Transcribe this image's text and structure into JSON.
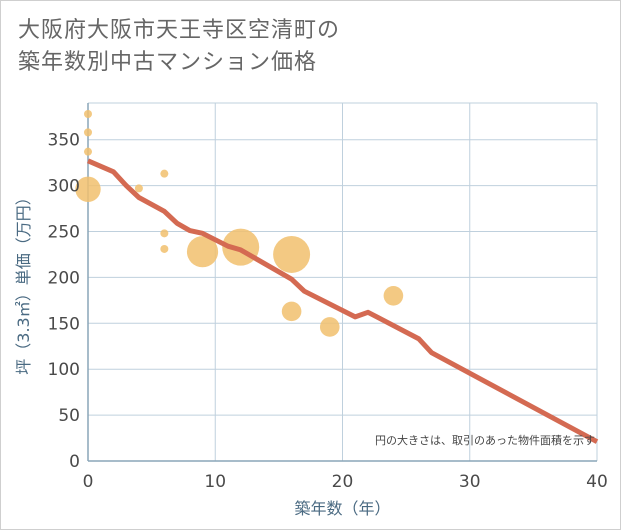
{
  "title": {
    "line1": "大阪府大阪市天王寺区空清町の",
    "line2": "築年数別中古マンション価格"
  },
  "colors": {
    "bubble": "#f1bf6d",
    "trend": "#d46a52",
    "grid": "#bfd0dd",
    "plot_border": "#8aa5b8"
  },
  "chart_data": {
    "type": "scatter",
    "xlabel": "築年数（年）",
    "ylabel": "坪（3.3㎡）単価（万円）",
    "xlim": [
      0,
      40
    ],
    "ylim": [
      0,
      390
    ],
    "xticks": [
      0,
      10,
      20,
      30,
      40
    ],
    "yticks": [
      0,
      50,
      100,
      150,
      200,
      250,
      300,
      350
    ],
    "note": "円の大きさは、取引のあった物件面積を示す",
    "points": [
      {
        "x": 0,
        "y": 378,
        "size": 1
      },
      {
        "x": 0,
        "y": 358,
        "size": 1
      },
      {
        "x": 0,
        "y": 337,
        "size": 1
      },
      {
        "x": 0,
        "y": 296,
        "size": 4
      },
      {
        "x": 4,
        "y": 297,
        "size": 1
      },
      {
        "x": 6,
        "y": 313,
        "size": 1
      },
      {
        "x": 6,
        "y": 248,
        "size": 1
      },
      {
        "x": 6,
        "y": 231,
        "size": 1
      },
      {
        "x": 9,
        "y": 228,
        "size": 5
      },
      {
        "x": 12,
        "y": 233,
        "size": 6
      },
      {
        "x": 16,
        "y": 225,
        "size": 6
      },
      {
        "x": 16,
        "y": 163,
        "size": 3
      },
      {
        "x": 19,
        "y": 146,
        "size": 3
      },
      {
        "x": 24,
        "y": 180,
        "size": 3
      }
    ],
    "trend_line": {
      "x": [
        0,
        2,
        3,
        4,
        6,
        7,
        8,
        9,
        11,
        12,
        16,
        17,
        21,
        22,
        26,
        27,
        40
      ],
      "y": [
        327,
        315,
        300,
        287,
        272,
        259,
        251,
        248,
        234,
        230,
        198,
        185,
        157,
        162,
        133,
        118,
        21
      ]
    }
  }
}
